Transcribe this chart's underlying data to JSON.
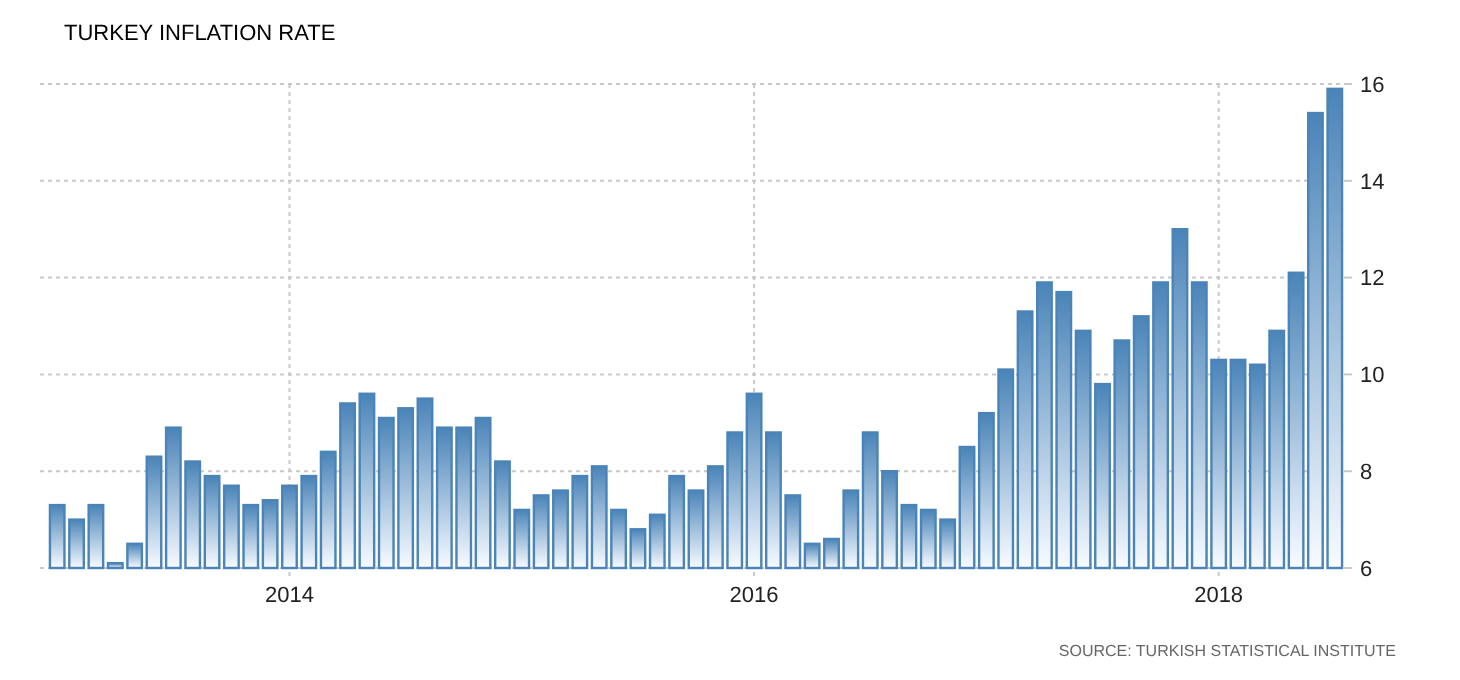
{
  "chart_data": {
    "type": "bar",
    "title": "TURKEY INFLATION RATE",
    "categories": [
      null,
      null,
      null,
      null,
      null,
      null,
      null,
      null,
      null,
      null,
      null,
      null,
      "2014",
      null,
      null,
      null,
      null,
      null,
      null,
      null,
      null,
      null,
      null,
      null,
      null,
      null,
      null,
      null,
      null,
      null,
      null,
      null,
      null,
      null,
      null,
      null,
      "2016",
      null,
      null,
      null,
      null,
      null,
      null,
      null,
      null,
      null,
      null,
      null,
      null,
      null,
      null,
      null,
      null,
      null,
      null,
      null,
      null,
      null,
      null,
      null,
      "2018",
      null,
      null,
      null,
      null,
      null,
      null
    ],
    "values": [
      7.3,
      7.0,
      7.3,
      6.1,
      6.5,
      8.3,
      8.9,
      8.2,
      7.9,
      7.7,
      7.3,
      7.4,
      7.7,
      7.9,
      8.4,
      9.4,
      9.6,
      9.1,
      9.3,
      9.5,
      8.9,
      8.9,
      9.1,
      8.2,
      7.2,
      7.5,
      7.6,
      7.9,
      8.1,
      7.2,
      6.8,
      7.1,
      7.9,
      7.6,
      8.1,
      8.8,
      9.6,
      8.8,
      7.5,
      6.5,
      6.6,
      7.6,
      8.8,
      8.0,
      7.3,
      7.2,
      7.0,
      8.5,
      9.2,
      10.1,
      11.3,
      11.9,
      11.7,
      10.9,
      9.8,
      10.7,
      11.2,
      11.9,
      13.0,
      11.9,
      10.3,
      10.3,
      10.2,
      10.9,
      12.1,
      15.4,
      15.9
    ],
    "color": "#4a84b8",
    "ylim": [
      6,
      16
    ],
    "yticks": [
      6,
      8,
      10,
      12,
      14,
      16
    ],
    "grid": true,
    "annotations": [
      "SOURCE: TURKISH STATISTICAL INSTITUTE"
    ]
  }
}
